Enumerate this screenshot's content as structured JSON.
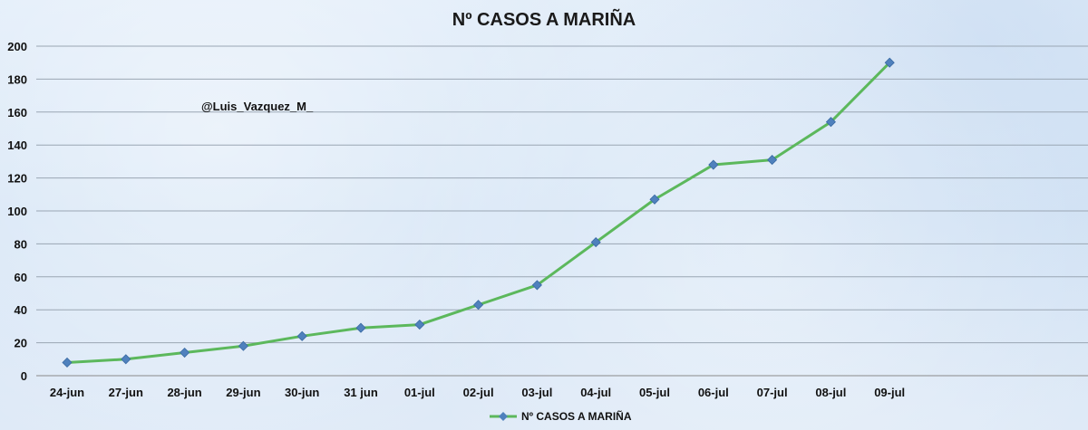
{
  "chart_data": {
    "type": "line",
    "title": "Nº CASOS A MARIÑA",
    "annotation": "@Luis_Vazquez_M_",
    "categories": [
      "24-jun",
      "27-jun",
      "28-jun",
      "29-jun",
      "30-jun",
      "31 jun",
      "01-jul",
      "02-jul",
      "03-jul",
      "04-jul",
      "05-jul",
      "06-jul",
      "07-jul",
      "08-jul",
      "09-jul"
    ],
    "series": [
      {
        "name": "Nº CASOS A MARIÑA",
        "color": "#5cb85c",
        "marker_color": "#4f81bd",
        "values": [
          8,
          10,
          14,
          18,
          24,
          29,
          31,
          43,
          55,
          81,
          107,
          128,
          131,
          154,
          190
        ]
      }
    ],
    "ylim": [
      0,
      200
    ],
    "yticks": [
      0,
      20,
      40,
      60,
      80,
      100,
      120,
      140,
      160,
      180,
      200
    ],
    "grid": true,
    "legend_position": "bottom"
  }
}
